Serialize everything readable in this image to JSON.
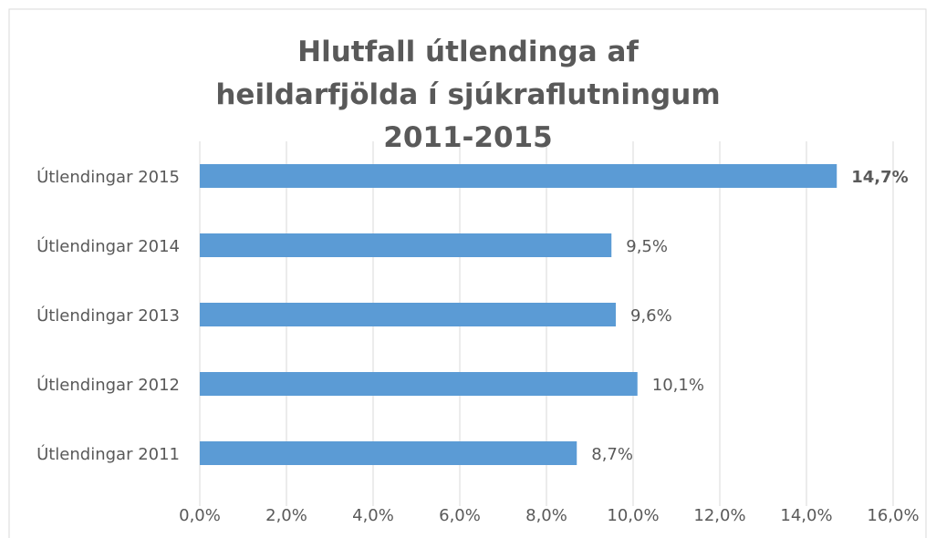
{
  "chart_data": {
    "type": "barh",
    "title": "Hlutfall útlendinga af heildarfjölda í sjúkraflutningum 2011-2015",
    "categories": [
      "Útlendingar 2015",
      "Útlendingar 2014",
      "Útlendingar 2013",
      "Útlendingar 2012",
      "Útlendingar 2011"
    ],
    "values": [
      14.7,
      9.5,
      9.6,
      10.1,
      8.7
    ],
    "value_labels": [
      "14,7%",
      "9,5%",
      "9,6%",
      "10,1%",
      "8,7%"
    ],
    "value_label_bold": [
      true,
      false,
      false,
      false,
      false
    ],
    "color": "#5b9bd5",
    "xlim": [
      0,
      16
    ],
    "xticks": [
      {
        "value": 0,
        "label": "0,0%"
      },
      {
        "value": 2,
        "label": "2,0%"
      },
      {
        "value": 4,
        "label": "4,0%"
      },
      {
        "value": 6,
        "label": "6,0%"
      },
      {
        "value": 8,
        "label": "8,0%"
      },
      {
        "value": 10,
        "label": "10,0%"
      },
      {
        "value": 12,
        "label": "12,0%"
      },
      {
        "value": 14,
        "label": "14,0%"
      },
      {
        "value": 16,
        "label": "16,0%"
      }
    ],
    "grid": true
  }
}
